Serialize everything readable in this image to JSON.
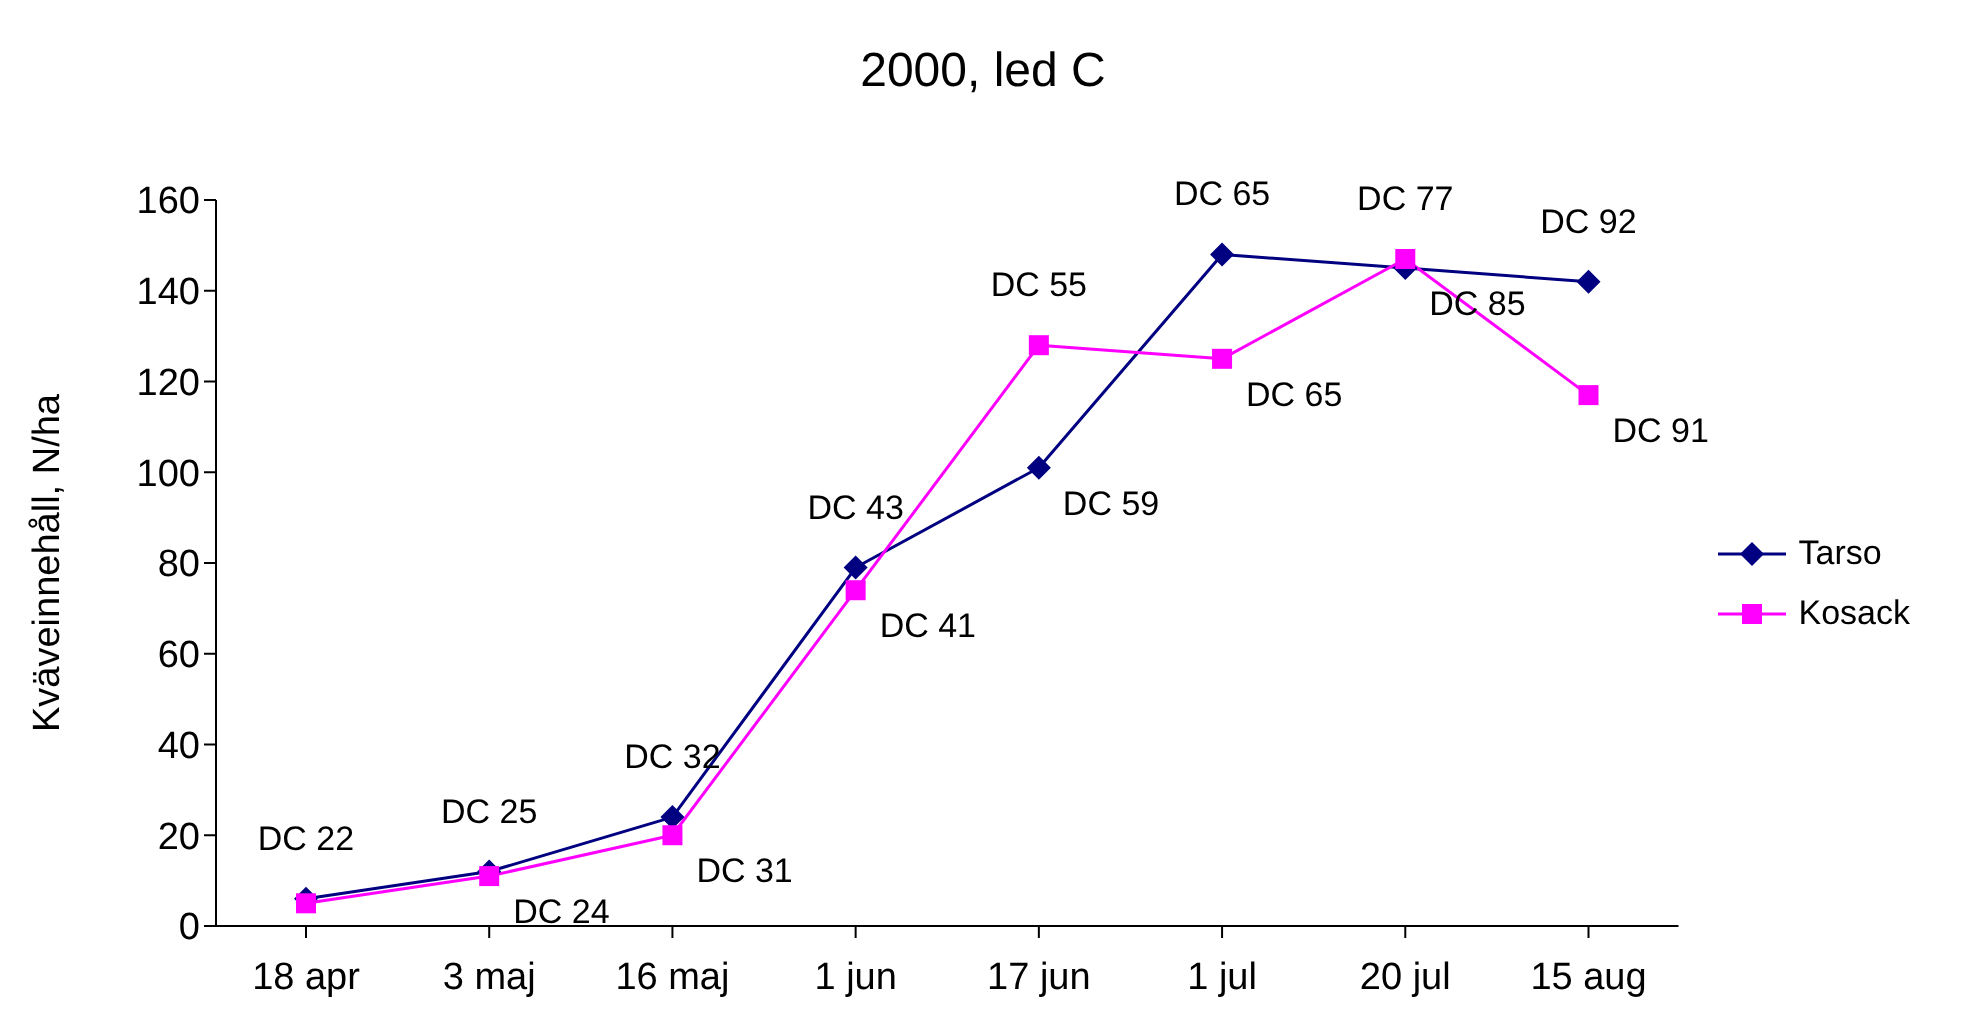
{
  "chart_data": {
    "type": "line",
    "title": "2000, led C",
    "ylabel": "Kväveinnehåll, N/ha",
    "categories": [
      "18 apr",
      "3 maj",
      "16 maj",
      "1 jun",
      "17 jun",
      "1 jul",
      "20 jul",
      "15 aug"
    ],
    "series": [
      {
        "name": "Tarso",
        "color": "#000080",
        "marker": "diamond",
        "values": [
          6,
          12,
          24,
          79,
          101,
          148,
          145,
          142
        ]
      },
      {
        "name": "Kosack",
        "color": "#ff00ff",
        "marker": "square",
        "values": [
          5,
          11,
          20,
          74,
          128,
          125,
          147,
          117
        ]
      }
    ],
    "ylim": [
      0,
      160
    ],
    "yticks": [
      0,
      20,
      40,
      60,
      80,
      100,
      120,
      140,
      160
    ],
    "grid": false,
    "legend": "right",
    "annotations": [
      {
        "text": "DC 22",
        "x": "18 apr",
        "y": 6
      },
      {
        "text": "DC 25",
        "x": "3 maj",
        "y": 12
      },
      {
        "text": "DC 24",
        "x": "3 maj",
        "y": 11
      },
      {
        "text": "DC 32",
        "x": "16 maj",
        "y": 24
      },
      {
        "text": "DC 31",
        "x": "16 maj",
        "y": 20
      },
      {
        "text": "DC 43",
        "x": "1 jun",
        "y": 79
      },
      {
        "text": "DC 41",
        "x": "1 jun",
        "y": 74
      },
      {
        "text": "DC 55",
        "x": "17 jun",
        "y": 128
      },
      {
        "text": "DC 59",
        "x": "17 jun",
        "y": 101
      },
      {
        "text": "DC 65",
        "x": "1 jul",
        "y": 148
      },
      {
        "text": "DC 65",
        "x": "1 jul",
        "y": 125
      },
      {
        "text": "DC 77",
        "x": "20 jul",
        "y": 147
      },
      {
        "text": "DC 85",
        "x": "20 jul",
        "y": 145
      },
      {
        "text": "DC 92",
        "x": "15 aug",
        "y": 142
      },
      {
        "text": "DC 91",
        "x": "15 aug",
        "y": 117
      }
    ]
  }
}
